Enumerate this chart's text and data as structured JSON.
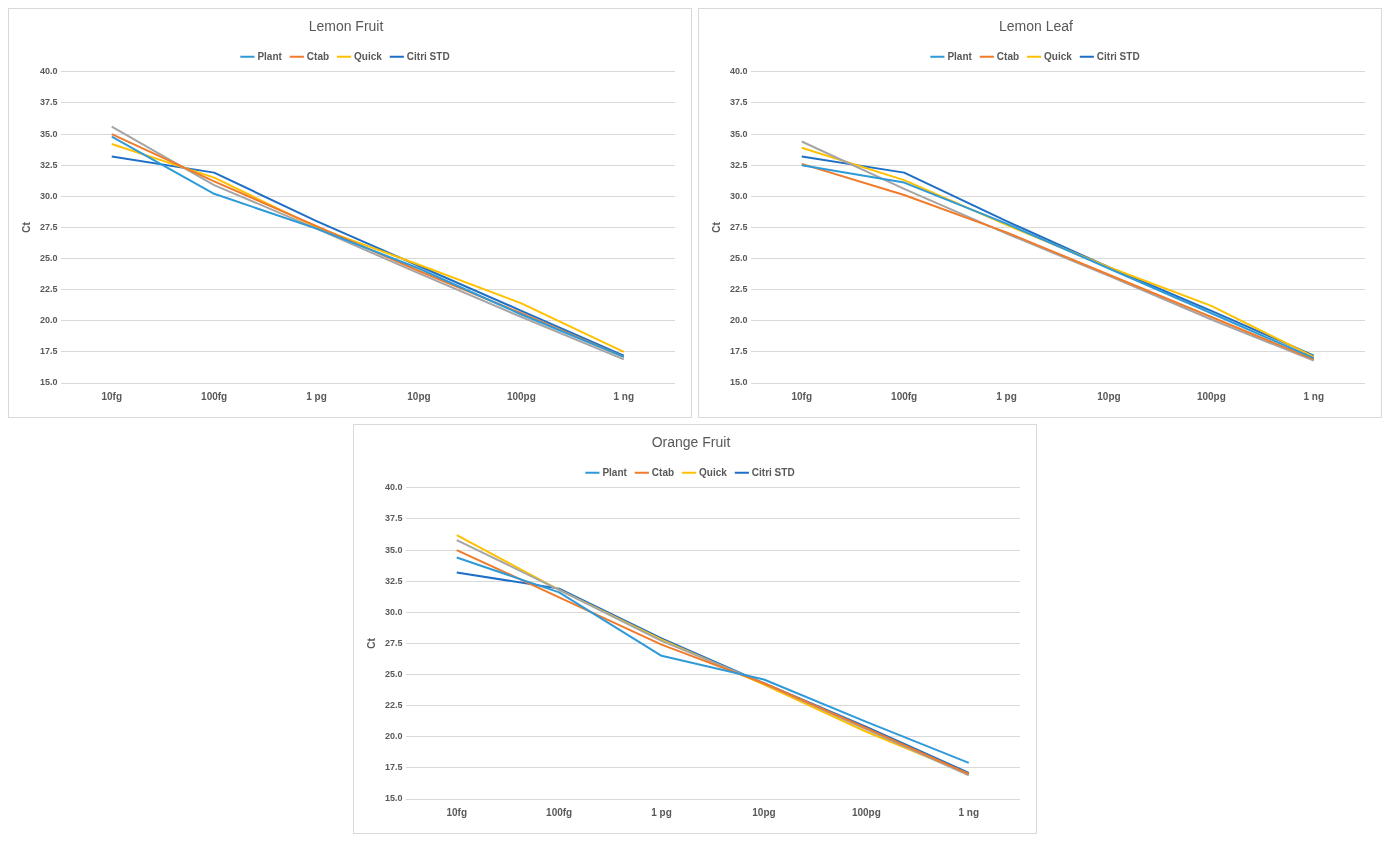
{
  "chart_data": [
    {
      "type": "line",
      "title": "Lemon Fruit",
      "ylabel": "Ct",
      "categories": [
        "10fg",
        "100fg",
        "1 pg",
        "10pg",
        "100pg",
        "1 ng"
      ],
      "ylim": [
        15,
        40
      ],
      "yticks": [
        {
          "value": 15,
          "label": "15.0"
        },
        {
          "value": 17.5,
          "label": "17.5"
        },
        {
          "value": 20,
          "label": "20.0"
        },
        {
          "value": 22.5,
          "label": "22.5"
        },
        {
          "value": 25,
          "label": "25.0"
        },
        {
          "value": 27.5,
          "label": "27.5"
        },
        {
          "value": 30,
          "label": "30.0"
        },
        {
          "value": 32.5,
          "label": "32.5"
        },
        {
          "value": 35,
          "label": "35.0"
        },
        {
          "value": 37.5,
          "label": "37.5"
        },
        {
          "value": 40,
          "label": "40.0"
        }
      ],
      "grid": "y",
      "legend": "top",
      "marker": "none",
      "line_style": "solid",
      "series": [
        {
          "name": "Plant",
          "color": "#2e9ad8",
          "values": [
            34.8,
            30.2,
            27.4,
            24.2,
            20.5,
            17.1
          ]
        },
        {
          "name": "Ctab",
          "color": "#f07b2b",
          "values": [
            35.0,
            31.2,
            27.6,
            24.0,
            20.6,
            17.1
          ]
        },
        {
          "color": "#a5a5a5",
          "values": [
            35.6,
            30.9,
            27.4,
            23.8,
            20.3,
            16.9
          ]
        },
        {
          "name": "Quick",
          "color": "#ffc000",
          "values": [
            34.2,
            31.5,
            27.5,
            24.5,
            21.4,
            17.5
          ]
        },
        {
          "name": "Citri STD",
          "color": "#1f6fc6",
          "values": [
            33.2,
            31.9,
            28.0,
            24.4,
            20.8,
            17.2
          ]
        }
      ]
    },
    {
      "type": "line",
      "title": "Lemon Leaf",
      "ylabel": "Ct",
      "categories": [
        "10fg",
        "100fg",
        "1 pg",
        "10pg",
        "100pg",
        "1 ng"
      ],
      "ylim": [
        15,
        40
      ],
      "yticks": [
        {
          "value": 15,
          "label": "15.0"
        },
        {
          "value": 17.5,
          "label": "17.5"
        },
        {
          "value": 20,
          "label": "20.0"
        },
        {
          "value": 22.5,
          "label": "22.5"
        },
        {
          "value": 25,
          "label": "25.0"
        },
        {
          "value": 27.5,
          "label": "27.5"
        },
        {
          "value": 30,
          "label": "30.0"
        },
        {
          "value": 32.5,
          "label": "32.5"
        },
        {
          "value": 35,
          "label": "35.0"
        },
        {
          "value": 37.5,
          "label": "37.5"
        },
        {
          "value": 40,
          "label": "40.0"
        }
      ],
      "grid": "y",
      "legend": "top",
      "marker": "none",
      "line_style": "solid",
      "series": [
        {
          "name": "Plant",
          "color": "#2e9ad8",
          "values": [
            32.5,
            31.1,
            27.8,
            24.2,
            20.6,
            17.0
          ]
        },
        {
          "name": "Ctab",
          "color": "#f07b2b",
          "values": [
            32.6,
            30.1,
            27.1,
            23.7,
            20.3,
            16.9
          ]
        },
        {
          "color": "#a5a5a5",
          "values": [
            34.4,
            30.6,
            27.0,
            23.6,
            20.1,
            16.8
          ]
        },
        {
          "name": "Quick",
          "color": "#ffc000",
          "values": [
            33.9,
            31.3,
            27.7,
            24.3,
            21.2,
            17.1
          ]
        },
        {
          "name": "Citri STD",
          "color": "#1f6fc6",
          "values": [
            33.2,
            31.9,
            28.0,
            24.3,
            20.8,
            17.2
          ]
        }
      ]
    },
    {
      "type": "line",
      "title": "Orange Fruit",
      "ylabel": "Ct",
      "categories": [
        "10fg",
        "100fg",
        "1 pg",
        "10pg",
        "100pg",
        "1 ng"
      ],
      "ylim": [
        15,
        40
      ],
      "yticks": [
        {
          "value": 15,
          "label": "15.0"
        },
        {
          "value": 17.5,
          "label": "17.5"
        },
        {
          "value": 20,
          "label": "20.0"
        },
        {
          "value": 22.5,
          "label": "22.5"
        },
        {
          "value": 25,
          "label": "25.0"
        },
        {
          "value": 27.5,
          "label": "27.5"
        },
        {
          "value": 30,
          "label": "30.0"
        },
        {
          "value": 32.5,
          "label": "32.5"
        },
        {
          "value": 35,
          "label": "35.0"
        },
        {
          "value": 37.5,
          "label": "37.5"
        },
        {
          "value": 40,
          "label": "40.0"
        }
      ],
      "grid": "y",
      "legend": "top",
      "marker": "none",
      "line_style": "solid",
      "series": [
        {
          "name": "Plant",
          "color": "#2e9ad8",
          "values": [
            34.4,
            31.6,
            26.5,
            24.6,
            21.2,
            17.9
          ]
        },
        {
          "name": "Ctab",
          "color": "#f07b2b",
          "values": [
            35.0,
            31.2,
            27.4,
            24.3,
            20.7,
            17.0
          ]
        },
        {
          "color": "#a5a5a5",
          "values": [
            35.8,
            31.8,
            27.7,
            24.3,
            20.6,
            16.9
          ]
        },
        {
          "name": "Quick",
          "color": "#ffc000",
          "values": [
            36.2,
            31.8,
            27.8,
            24.2,
            20.4,
            17.0
          ]
        },
        {
          "name": "Citri STD",
          "color": "#1f6fc6",
          "values": [
            33.2,
            31.9,
            27.9,
            24.3,
            20.8,
            17.1
          ]
        }
      ]
    }
  ]
}
